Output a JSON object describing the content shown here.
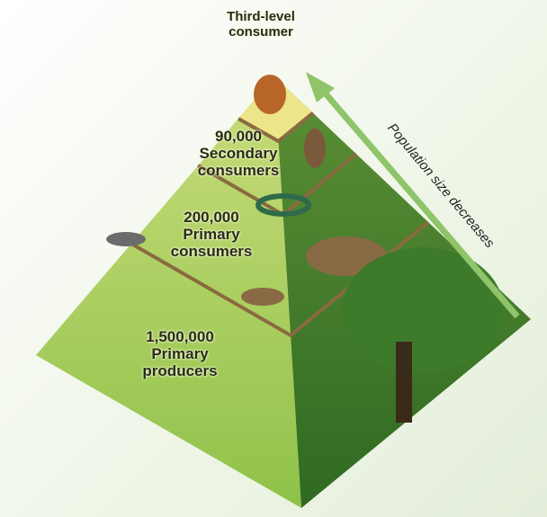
{
  "top": {
    "label": "Third-level consumer"
  },
  "levels": [
    {
      "count": "90,000",
      "label": "Secondary consumers"
    },
    {
      "count": "200,000",
      "label": "Primary consumers"
    },
    {
      "count": "1,500,000",
      "label": "Primary producers"
    }
  ],
  "arrow": {
    "label": "Population size decreases"
  }
}
